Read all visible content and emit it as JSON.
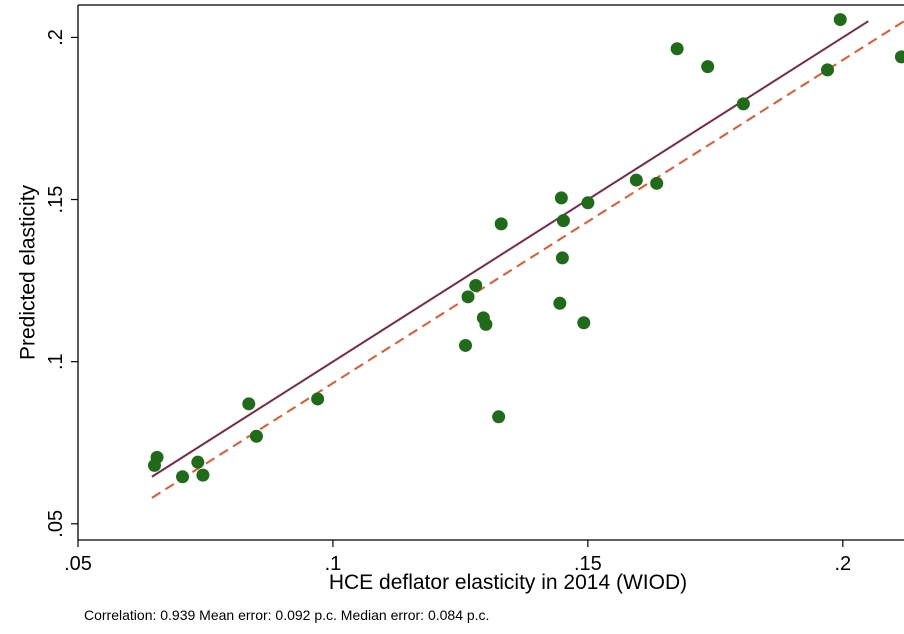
{
  "chart_data": {
    "type": "scatter",
    "title": "",
    "xlabel": "HCE deflator elasticity in 2014 (WIOD)",
    "ylabel": "Predicted elasticity",
    "xlim": [
      0.05,
      0.212
    ],
    "ylim": [
      0.045,
      0.21
    ],
    "x_ticks": [
      0.05,
      0.1,
      0.15,
      0.2
    ],
    "x_tick_labels": [
      ".05",
      ".1",
      ".15",
      ".2"
    ],
    "y_ticks": [
      0.05,
      0.1,
      0.15,
      0.2
    ],
    "y_tick_labels": [
      ".05",
      ".1",
      ".15",
      ".2"
    ],
    "grid": false,
    "point_color": "#1f6b1a",
    "points": [
      {
        "x": 0.065,
        "y": 0.068
      },
      {
        "x": 0.0655,
        "y": 0.0705
      },
      {
        "x": 0.0705,
        "y": 0.0645
      },
      {
        "x": 0.0735,
        "y": 0.069
      },
      {
        "x": 0.0745,
        "y": 0.065
      },
      {
        "x": 0.0835,
        "y": 0.087
      },
      {
        "x": 0.085,
        "y": 0.077
      },
      {
        "x": 0.097,
        "y": 0.0885
      },
      {
        "x": 0.126,
        "y": 0.105
      },
      {
        "x": 0.1265,
        "y": 0.12
      },
      {
        "x": 0.128,
        "y": 0.1235
      },
      {
        "x": 0.1295,
        "y": 0.1135
      },
      {
        "x": 0.13,
        "y": 0.1115
      },
      {
        "x": 0.1325,
        "y": 0.083
      },
      {
        "x": 0.133,
        "y": 0.1425
      },
      {
        "x": 0.1445,
        "y": 0.118
      },
      {
        "x": 0.1448,
        "y": 0.1505
      },
      {
        "x": 0.145,
        "y": 0.132
      },
      {
        "x": 0.1452,
        "y": 0.1435
      },
      {
        "x": 0.1492,
        "y": 0.112
      },
      {
        "x": 0.15,
        "y": 0.149
      },
      {
        "x": 0.1595,
        "y": 0.156
      },
      {
        "x": 0.1635,
        "y": 0.155
      },
      {
        "x": 0.1675,
        "y": 0.1965
      },
      {
        "x": 0.1735,
        "y": 0.191
      },
      {
        "x": 0.1805,
        "y": 0.1795
      },
      {
        "x": 0.197,
        "y": 0.19
      },
      {
        "x": 0.1995,
        "y": 0.2055
      },
      {
        "x": 0.2115,
        "y": 0.194
      }
    ],
    "lines": [
      {
        "style": "solid",
        "color": "#7b2a45",
        "x": [
          0.0645,
          0.205
        ],
        "y": [
          0.0645,
          0.205
        ]
      },
      {
        "style": "dashed",
        "color": "#e4572e",
        "x": [
          0.0645,
          0.2125
        ],
        "y": [
          0.058,
          0.2055
        ]
      }
    ]
  },
  "footnote": "Correlation: 0.939 Mean error: 0.092 p.c.  Median error: 0.084 p.c."
}
